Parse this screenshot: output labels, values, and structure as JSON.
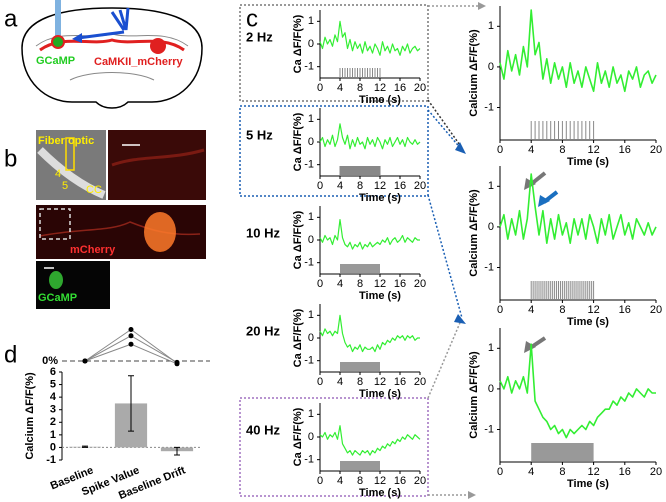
{
  "panel_a": {
    "label": "a",
    "gcamp": "GCaMP",
    "mcherry": "CaMKII_mCherry"
  },
  "panel_b": {
    "label": "b",
    "fiber": "Fiber optic",
    "layer4": "4",
    "layer5": "5",
    "cc": "CC",
    "mcherry": "mCherry",
    "gcamp": "GCaMP"
  },
  "panel_c": {
    "label": "c"
  },
  "panel_d": {
    "label": "d"
  },
  "chart_data": [
    {
      "type": "line",
      "title": "2 Hz",
      "xlabel": "Time (s)",
      "ylabel": "Ca ΔF/F(%)",
      "color": "#33ee33",
      "x": [
        0,
        0.5,
        1,
        1.5,
        2,
        2.5,
        3,
        3.5,
        4,
        4.5,
        5,
        5.5,
        6,
        6.5,
        7,
        7.5,
        8,
        8.5,
        9,
        9.5,
        10,
        10.5,
        11,
        11.5,
        12,
        12.5,
        13,
        13.5,
        14,
        14.5,
        15,
        15.5,
        16,
        16.5,
        17,
        17.5,
        18,
        18.5,
        19,
        19.5,
        20
      ],
      "values": [
        0.1,
        -0.2,
        0.3,
        0.0,
        0.2,
        -0.1,
        0.4,
        0.1,
        1.0,
        0.3,
        0.5,
        -0.2,
        0.2,
        -0.3,
        0.1,
        -0.2,
        0.0,
        -0.4,
        0.1,
        -0.3,
        -0.1,
        -0.4,
        0.0,
        -0.2,
        -0.5,
        0.1,
        -0.3,
        -0.1,
        -0.4,
        0.0,
        -0.3,
        -0.2,
        -0.5,
        -0.1,
        -0.3,
        0.0,
        -0.4,
        -0.2,
        -0.1,
        -0.3,
        -0.2
      ],
      "xlim": [
        0,
        20
      ],
      "ylim": [
        -1.5,
        1.5
      ],
      "xticks": [
        0,
        4,
        8,
        12,
        16,
        20
      ],
      "yticks": [
        -1,
        0,
        1
      ],
      "stimulus": [
        4,
        12
      ],
      "stimulus_style": "pulses",
      "pulse_interval": 0.5
    },
    {
      "type": "line",
      "title": "5 Hz",
      "xlabel": "Time (s)",
      "ylabel": "Ca ΔF/F(%)",
      "color": "#33ee33",
      "x": [
        0,
        0.5,
        1,
        1.5,
        2,
        2.5,
        3,
        3.5,
        4,
        4.5,
        5,
        5.5,
        6,
        6.5,
        7,
        7.5,
        8,
        8.5,
        9,
        9.5,
        10,
        10.5,
        11,
        11.5,
        12,
        12.5,
        13,
        13.5,
        14,
        14.5,
        15,
        15.5,
        16,
        16.5,
        17,
        17.5,
        18,
        18.5,
        19,
        19.5,
        20
      ],
      "values": [
        0.0,
        0.2,
        -0.2,
        0.1,
        -0.1,
        0.3,
        -0.2,
        0.1,
        0.8,
        0.2,
        -0.1,
        0.3,
        -0.3,
        0.1,
        -0.2,
        0.2,
        -0.1,
        0.0,
        -0.3,
        0.2,
        -0.1,
        0.1,
        -0.2,
        0.2,
        0.0,
        -0.3,
        0.1,
        -0.1,
        0.2,
        -0.2,
        0.0,
        0.2,
        -0.1,
        0.1,
        -0.2,
        0.2,
        0.0,
        -0.1,
        0.1,
        -0.1,
        0.0
      ],
      "xlim": [
        0,
        20
      ],
      "ylim": [
        -1.5,
        1.5
      ],
      "xticks": [
        0,
        4,
        8,
        12,
        16,
        20
      ],
      "yticks": [
        -1,
        0,
        1
      ],
      "stimulus": [
        4,
        12
      ],
      "stimulus_style": "pulses",
      "pulse_interval": 0.2
    },
    {
      "type": "line",
      "title": "10 Hz",
      "xlabel": "Time (s)",
      "ylabel": "Ca ΔF/F(%)",
      "color": "#33ee33",
      "x": [
        0,
        0.5,
        1,
        1.5,
        2,
        2.5,
        3,
        3.5,
        4,
        4.5,
        5,
        5.5,
        6,
        6.5,
        7,
        7.5,
        8,
        8.5,
        9,
        9.5,
        10,
        10.5,
        11,
        11.5,
        12,
        12.5,
        13,
        13.5,
        14,
        14.5,
        15,
        15.5,
        16,
        16.5,
        17,
        17.5,
        18,
        18.5,
        19,
        19.5,
        20
      ],
      "values": [
        0.1,
        -0.1,
        0.2,
        0.0,
        0.1,
        -0.2,
        0.2,
        0.0,
        0.9,
        0.1,
        -0.2,
        -0.3,
        -0.1,
        -0.4,
        -0.2,
        -0.3,
        -0.1,
        -0.4,
        -0.2,
        -0.3,
        -0.1,
        -0.3,
        -0.2,
        -0.1,
        -0.2,
        0.0,
        -0.1,
        0.1,
        -0.2,
        0.0,
        0.1,
        -0.1,
        0.0,
        0.2,
        -0.1,
        0.1,
        0.0,
        -0.1,
        0.1,
        0.0,
        0.0
      ],
      "xlim": [
        0,
        20
      ],
      "ylim": [
        -1.5,
        1.5
      ],
      "xticks": [
        0,
        4,
        8,
        12,
        16,
        20
      ],
      "yticks": [
        -1,
        0,
        1
      ],
      "stimulus": [
        4,
        12
      ],
      "stimulus_style": "block"
    },
    {
      "type": "line",
      "title": "20 Hz",
      "xlabel": "Time (s)",
      "ylabel": "Ca ΔF/F(%)",
      "color": "#33ee33",
      "x": [
        0,
        0.5,
        1,
        1.5,
        2,
        2.5,
        3,
        3.5,
        4,
        4.5,
        5,
        5.5,
        6,
        6.5,
        7,
        7.5,
        8,
        8.5,
        9,
        9.5,
        10,
        10.5,
        11,
        11.5,
        12,
        12.5,
        13,
        13.5,
        14,
        14.5,
        15,
        15.5,
        16,
        16.5,
        17,
        17.5,
        18,
        18.5,
        19,
        19.5,
        20
      ],
      "values": [
        0.3,
        0.1,
        0.4,
        0.2,
        0.3,
        0.1,
        0.3,
        0.2,
        1.0,
        0.2,
        -0.2,
        -0.4,
        -0.3,
        -0.6,
        -0.4,
        -0.5,
        -0.3,
        -0.6,
        -0.4,
        -0.5,
        -0.5,
        -0.4,
        -0.6,
        -0.3,
        -0.5,
        -0.2,
        -0.3,
        -0.1,
        -0.2,
        0.0,
        -0.1,
        0.1,
        0.0,
        0.1,
        -0.1,
        0.1,
        0.0,
        0.1,
        -0.1,
        0.0,
        0.0
      ],
      "xlim": [
        0,
        20
      ],
      "ylim": [
        -1.5,
        1.5
      ],
      "xticks": [
        0,
        4,
        8,
        12,
        16,
        20
      ],
      "yticks": [
        -1,
        0,
        1
      ],
      "stimulus": [
        4,
        12
      ],
      "stimulus_style": "block"
    },
    {
      "type": "line",
      "title": "40 Hz",
      "xlabel": "Time (s)",
      "ylabel": "Ca ΔF/F(%)",
      "color": "#33ee33",
      "x": [
        0,
        0.5,
        1,
        1.5,
        2,
        2.5,
        3,
        3.5,
        4,
        4.5,
        5,
        5.5,
        6,
        6.5,
        7,
        7.5,
        8,
        8.5,
        9,
        9.5,
        10,
        10.5,
        11,
        11.5,
        12,
        12.5,
        13,
        13.5,
        14,
        14.5,
        15,
        15.5,
        16,
        16.5,
        17,
        17.5,
        18,
        18.5,
        19,
        19.5,
        20
      ],
      "values": [
        0.1,
        0.0,
        0.2,
        -0.1,
        0.1,
        0.0,
        0.2,
        -0.1,
        0.5,
        -0.3,
        -0.5,
        -0.7,
        -0.6,
        -0.8,
        -0.6,
        -0.7,
        -0.8,
        -0.6,
        -0.7,
        -0.6,
        -0.8,
        -0.6,
        -0.7,
        -0.5,
        -0.6,
        -0.4,
        -0.5,
        -0.3,
        -0.4,
        -0.2,
        -0.3,
        -0.1,
        -0.2,
        0.0,
        -0.1,
        0.1,
        0.0,
        -0.1,
        0.1,
        0.0,
        -0.1
      ],
      "xlim": [
        0,
        20
      ],
      "ylim": [
        -1.5,
        1.5
      ],
      "xticks": [
        0,
        4,
        8,
        12,
        16,
        20
      ],
      "yticks": [
        -1,
        0,
        1
      ],
      "stimulus": [
        4,
        12
      ],
      "stimulus_style": "block"
    },
    {
      "type": "line",
      "xlabel": "Time (s)",
      "ylabel": "Calcium ΔF/F(%)",
      "color": "#33ee33",
      "x": [
        0,
        0.5,
        1,
        1.5,
        2,
        2.5,
        3,
        3.5,
        4,
        4.5,
        5,
        5.5,
        6,
        6.5,
        7,
        7.5,
        8,
        8.5,
        9,
        9.5,
        10,
        10.5,
        11,
        11.5,
        12,
        12.5,
        13,
        13.5,
        14,
        14.5,
        15,
        15.5,
        16,
        16.5,
        17,
        17.5,
        18,
        18.5,
        19,
        19.5,
        20
      ],
      "values": [
        0.1,
        -0.3,
        0.4,
        -0.1,
        0.3,
        -0.2,
        0.5,
        0.0,
        1.4,
        0.3,
        0.6,
        -0.3,
        0.2,
        -0.4,
        0.1,
        -0.3,
        0.0,
        -0.5,
        0.1,
        -0.4,
        -0.1,
        -0.5,
        0.0,
        -0.3,
        -0.6,
        0.1,
        -0.4,
        -0.1,
        -0.5,
        0.0,
        -0.4,
        -0.2,
        -0.6,
        -0.1,
        -0.3,
        0.0,
        -0.5,
        -0.2,
        -0.1,
        -0.4,
        -0.2
      ],
      "xlim": [
        0,
        20
      ],
      "ylim": [
        -1.8,
        1.5
      ],
      "xticks": [
        0,
        4,
        8,
        12,
        16,
        20
      ],
      "yticks": [
        -1,
        0,
        1
      ],
      "stimulus": [
        4,
        12
      ],
      "stimulus_style": "pulses",
      "pulse_interval": 0.5
    },
    {
      "type": "line",
      "xlabel": "Time (s)",
      "ylabel": "Calcium ΔF/F(%)",
      "color": "#33ee33",
      "x": [
        0,
        0.5,
        1,
        1.5,
        2,
        2.5,
        3,
        3.5,
        4,
        4.5,
        5,
        5.5,
        6,
        6.5,
        7,
        7.5,
        8,
        8.5,
        9,
        9.5,
        10,
        10.5,
        11,
        11.5,
        12,
        12.5,
        13,
        13.5,
        14,
        14.5,
        15,
        15.5,
        16,
        16.5,
        17,
        17.5,
        18,
        18.5,
        19,
        19.5,
        20
      ],
      "values": [
        0.0,
        0.3,
        -0.3,
        0.2,
        -0.2,
        0.4,
        -0.3,
        0.2,
        1.3,
        0.5,
        -0.2,
        0.4,
        -0.4,
        0.2,
        -0.3,
        0.3,
        -0.2,
        0.1,
        -0.4,
        0.2,
        -0.2,
        0.2,
        -0.3,
        0.3,
        0.0,
        -0.4,
        0.2,
        -0.2,
        0.3,
        -0.3,
        0.0,
        0.3,
        -0.2,
        0.1,
        -0.3,
        0.2,
        0.0,
        -0.2,
        0.1,
        -0.2,
        0.0
      ],
      "xlim": [
        0,
        20
      ],
      "ylim": [
        -1.8,
        1.5
      ],
      "xticks": [
        0,
        4,
        8,
        12,
        16,
        20
      ],
      "yticks": [
        -1,
        0,
        1
      ],
      "stimulus": [
        4,
        12
      ],
      "stimulus_style": "pulses",
      "pulse_interval": 0.25
    },
    {
      "type": "line",
      "xlabel": "Time (s)",
      "ylabel": "Calcium ΔF/F(%)",
      "color": "#33ee33",
      "x": [
        0,
        0.5,
        1,
        1.5,
        2,
        2.5,
        3,
        3.5,
        4,
        4.5,
        5,
        5.5,
        6,
        6.5,
        7,
        7.5,
        8,
        8.5,
        9,
        9.5,
        10,
        10.5,
        11,
        11.5,
        12,
        12.5,
        13,
        13.5,
        14,
        14.5,
        15,
        15.5,
        16,
        16.5,
        17,
        17.5,
        18,
        18.5,
        19,
        19.5,
        20
      ],
      "values": [
        0.2,
        0.0,
        0.3,
        -0.1,
        0.2,
        0.0,
        0.3,
        -0.1,
        1.1,
        -0.3,
        -0.5,
        -0.7,
        -0.8,
        -1.0,
        -0.9,
        -1.1,
        -1.0,
        -1.2,
        -1.0,
        -1.1,
        -1.0,
        -0.9,
        -1.0,
        -0.8,
        -0.9,
        -0.7,
        -0.6,
        -0.5,
        -0.5,
        -0.3,
        -0.4,
        -0.2,
        -0.3,
        -0.1,
        -0.2,
        0.0,
        -0.1,
        -0.2,
        0.0,
        -0.1,
        -0.1
      ],
      "xlim": [
        0,
        20
      ],
      "ylim": [
        -1.8,
        1.5
      ],
      "xticks": [
        0,
        4,
        8,
        12,
        16,
        20
      ],
      "yticks": [
        -1,
        0,
        1
      ],
      "stimulus": [
        4,
        12
      ],
      "stimulus_style": "block"
    },
    {
      "type": "dotline",
      "color": "#000000",
      "ylim": [
        -1,
        5
      ],
      "yticks": [
        {
          "value": 0,
          "label": "0%"
        }
      ],
      "series": [
        {
          "values": [
            0,
            4.5,
            -0.3
          ]
        },
        {
          "values": [
            0,
            3.6,
            -0.2
          ]
        },
        {
          "values": [
            0,
            2.4,
            -0.4
          ]
        }
      ]
    },
    {
      "type": "bar",
      "ylabel": "Calcium ΔF/F(%)",
      "color": "#aaaaaa",
      "categories": [
        "Baseline",
        "Spike Value",
        "Baseline Drift"
      ],
      "values": [
        0.05,
        3.5,
        -0.3
      ],
      "errors": [
        0.05,
        2.2,
        0.3
      ],
      "ylim": [
        -1,
        6
      ],
      "yticks": [
        -1,
        0,
        1,
        2,
        3,
        4,
        5,
        6
      ]
    }
  ]
}
